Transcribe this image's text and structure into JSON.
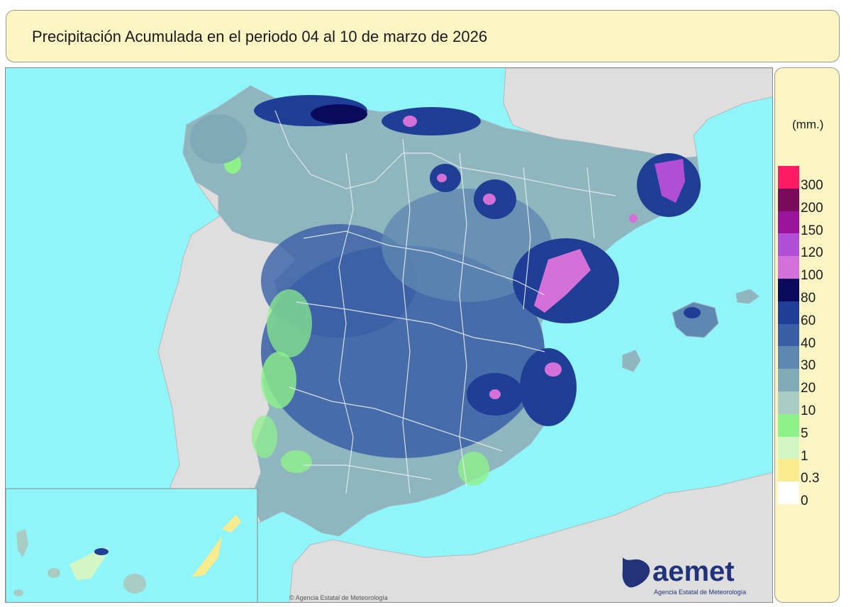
{
  "title": "Precipitación Acumulada en el periodo 04 al 10 de marzo de 2026",
  "legend": {
    "unit": "(mm.)",
    "classes": [
      {
        "label": "300",
        "color": "#ff1a66"
      },
      {
        "label": "200",
        "color": "#7a0a5a"
      },
      {
        "label": "150",
        "color": "#9b139a"
      },
      {
        "label": "120",
        "color": "#b04fd6"
      },
      {
        "label": "100",
        "color": "#d670d9"
      },
      {
        "label": "80",
        "color": "#0a0a5c"
      },
      {
        "label": "60",
        "color": "#1f3f96"
      },
      {
        "label": "40",
        "color": "#3a5fa6"
      },
      {
        "label": "30",
        "color": "#5e88b2"
      },
      {
        "label": "20",
        "color": "#7faab8"
      },
      {
        "label": "10",
        "color": "#a8ccc4"
      },
      {
        "label": "5",
        "color": "#8df28a"
      },
      {
        "label": "1",
        "color": "#d3f7c4"
      },
      {
        "label": "0.3",
        "color": "#fbeb8f"
      },
      {
        "label": "0",
        "color": "#ffffff"
      }
    ]
  },
  "colors": {
    "sea": "#8ff5f9",
    "land_outside": "#dedede",
    "panel": "#fdf6c4",
    "province_border": "#e6edf5"
  },
  "logo": {
    "name": "aemet",
    "subtitle": "Agencia Estatal de Meteorología"
  },
  "credit": "© Agencia Estatal de Meteorología"
}
